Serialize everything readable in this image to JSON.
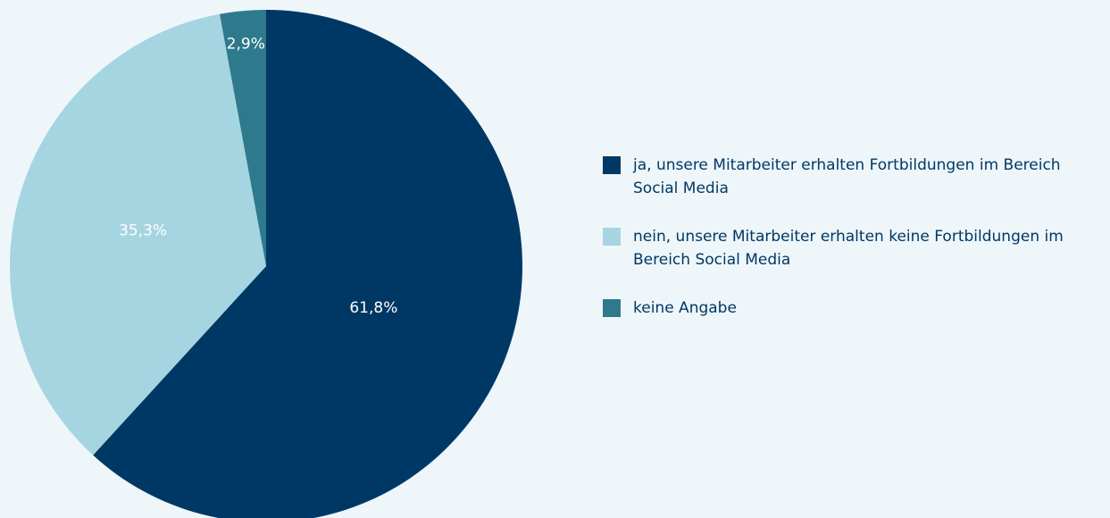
{
  "chart_data": {
    "type": "pie",
    "categories": [
      "ja, unsere Mitarbeiter erhalten Fortbildungen im Bereich Social Media",
      "nein, unsere Mitarbeiter erhalten keine Fortbildungen im Bereich Social Media",
      "keine Angabe"
    ],
    "values": [
      61.8,
      35.3,
      2.9
    ],
    "value_labels": [
      "61,8%",
      "35,3%",
      "2,9%"
    ],
    "colors": [
      "#003865",
      "#a5d5e0",
      "#2e7a8c"
    ],
    "legend": "right"
  }
}
